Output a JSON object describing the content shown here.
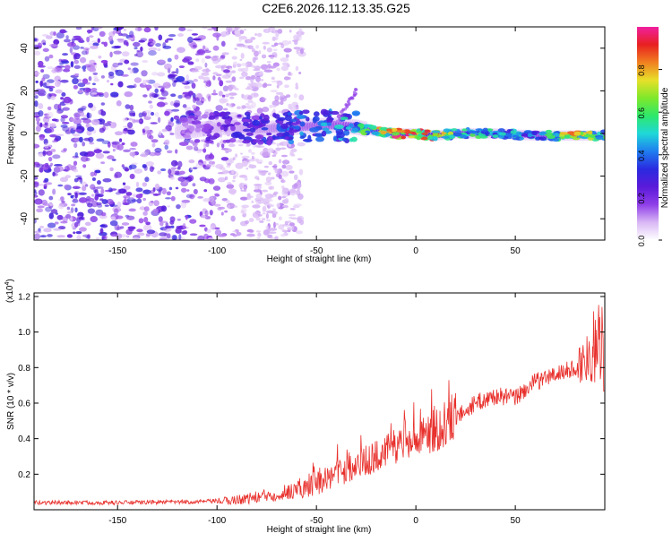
{
  "title": "C2E6.2026.112.13.35.G25",
  "colors": {
    "snr_line": "#e8302c",
    "frame": "#000000",
    "colormap": [
      "#ffffff",
      "#d9b8f5",
      "#8f3ee8",
      "#5a1ad9",
      "#2a2ae0",
      "#1f7ef0",
      "#1fd8d8",
      "#2ee86a",
      "#7fe82a",
      "#e8e02a",
      "#f08020",
      "#e82020",
      "#f020a0"
    ]
  },
  "chart_data": [
    {
      "type": "heatmap",
      "title": "C2E6.2026.112.13.35.G25",
      "xlabel": "Height of straight line (km)",
      "ylabel": "Frequency (Hz)",
      "xlim": [
        -192,
        95
      ],
      "ylim": [
        -50,
        50
      ],
      "xticks": [
        -150,
        -100,
        -50,
        0,
        50
      ],
      "yticks": [
        -40,
        -20,
        0,
        20,
        40
      ],
      "colorbar": {
        "label": "Normalized spectral amplitude",
        "range": [
          0.0,
          1.0
        ],
        "ticks": [
          "0.0",
          "0.2",
          "0.4",
          "0.6",
          "0.8"
        ]
      },
      "ridge": {
        "description_points_height_km": [
          -115,
          -100,
          -80,
          -60,
          -40,
          -30,
          -20,
          -10,
          0,
          10,
          20,
          40,
          60,
          80,
          92
        ],
        "frequency_hz": [
          1,
          3,
          2,
          3,
          4,
          3,
          1,
          0,
          0,
          -1,
          0,
          0,
          -1,
          -1,
          -1
        ],
        "amplitude": [
          0.15,
          0.25,
          0.3,
          0.4,
          0.45,
          0.5,
          0.7,
          0.9,
          0.9,
          0.8,
          0.6,
          0.5,
          0.45,
          0.8,
          0.6
        ]
      }
    },
    {
      "type": "line",
      "xlabel": "Height of straight line (km)",
      "ylabel": "SNR (10 * v/v)",
      "multiplier_label": "(x10",
      "multiplier_exponent": "4",
      "multiplier_close": ")",
      "xlim": [
        -192,
        95
      ],
      "ylim": [
        0,
        1.22
      ],
      "xticks": [
        -150,
        -100,
        -50,
        0,
        50
      ],
      "yticks": [
        "0.2",
        "0.4",
        "0.6",
        "0.8",
        "1.0",
        "1.2"
      ],
      "trend": {
        "x": [
          -192,
          -150,
          -110,
          -95,
          -80,
          -65,
          -50,
          -40,
          -30,
          -20,
          -10,
          0,
          10,
          20,
          30,
          40,
          50,
          60,
          70,
          80,
          85,
          88,
          90,
          92,
          95
        ],
        "y": [
          0.04,
          0.04,
          0.045,
          0.05,
          0.07,
          0.1,
          0.15,
          0.2,
          0.25,
          0.3,
          0.36,
          0.39,
          0.44,
          0.52,
          0.6,
          0.64,
          0.63,
          0.72,
          0.76,
          0.8,
          0.84,
          0.9,
          0.92,
          0.95,
          0.9
        ]
      }
    }
  ]
}
